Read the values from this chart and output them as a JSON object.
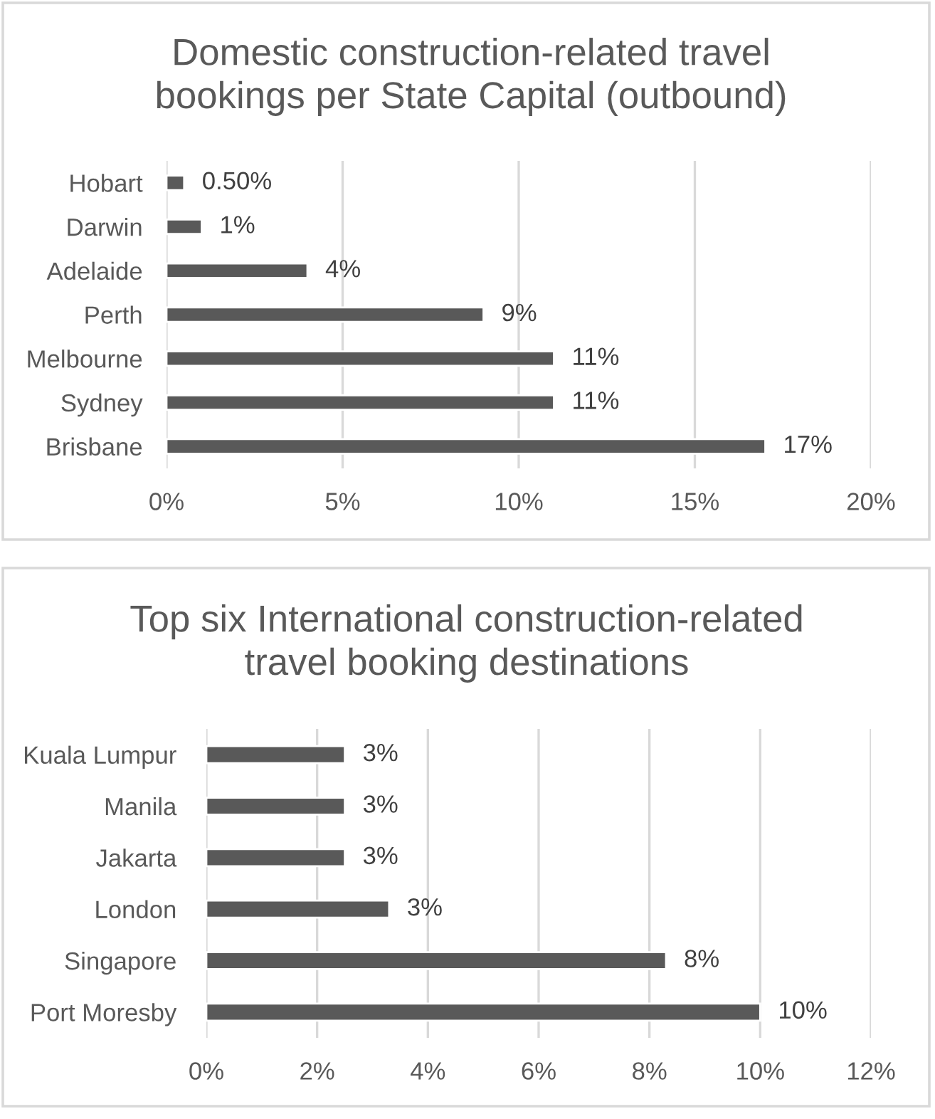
{
  "chart_data": [
    {
      "type": "bar",
      "orientation": "horizontal",
      "title": "Domestic construction-related travel bookings per State Capital (outbound)",
      "categories": [
        "Hobart",
        "Darwin",
        "Adelaide",
        "Perth",
        "Melbourne",
        "Sydney",
        "Brisbane"
      ],
      "values": [
        0.5,
        1,
        4,
        9,
        11,
        11,
        17
      ],
      "value_labels": [
        "0.50%",
        "1%",
        "4%",
        "9%",
        "11%",
        "11%",
        "17%"
      ],
      "color": "#595959",
      "xlim": [
        0,
        20
      ],
      "xticks": [
        {
          "value": 0,
          "label": "0%"
        },
        {
          "value": 5,
          "label": "5%"
        },
        {
          "value": 10,
          "label": "10%"
        },
        {
          "value": 15,
          "label": "15%"
        },
        {
          "value": 20,
          "label": "20%"
        }
      ],
      "grid": "x"
    },
    {
      "type": "bar",
      "orientation": "horizontal",
      "title": "Top six International construction-related travel booking destinations",
      "categories": [
        "Kuala Lumpur",
        "Manila",
        "Jakarta",
        "London",
        "Singapore",
        "Port Moresby"
      ],
      "values": [
        2.5,
        2.5,
        2.5,
        3.3,
        8.3,
        10
      ],
      "value_labels": [
        "3%",
        "3%",
        "3%",
        "3%",
        "8%",
        "10%"
      ],
      "color": "#595959",
      "xlim": [
        0,
        12
      ],
      "xticks": [
        {
          "value": 0,
          "label": "0%"
        },
        {
          "value": 2,
          "label": "2%"
        },
        {
          "value": 4,
          "label": "4%"
        },
        {
          "value": 6,
          "label": "6%"
        },
        {
          "value": 8,
          "label": "8%"
        },
        {
          "value": 10,
          "label": "10%"
        },
        {
          "value": 12,
          "label": "12%"
        }
      ],
      "grid": "x"
    }
  ]
}
